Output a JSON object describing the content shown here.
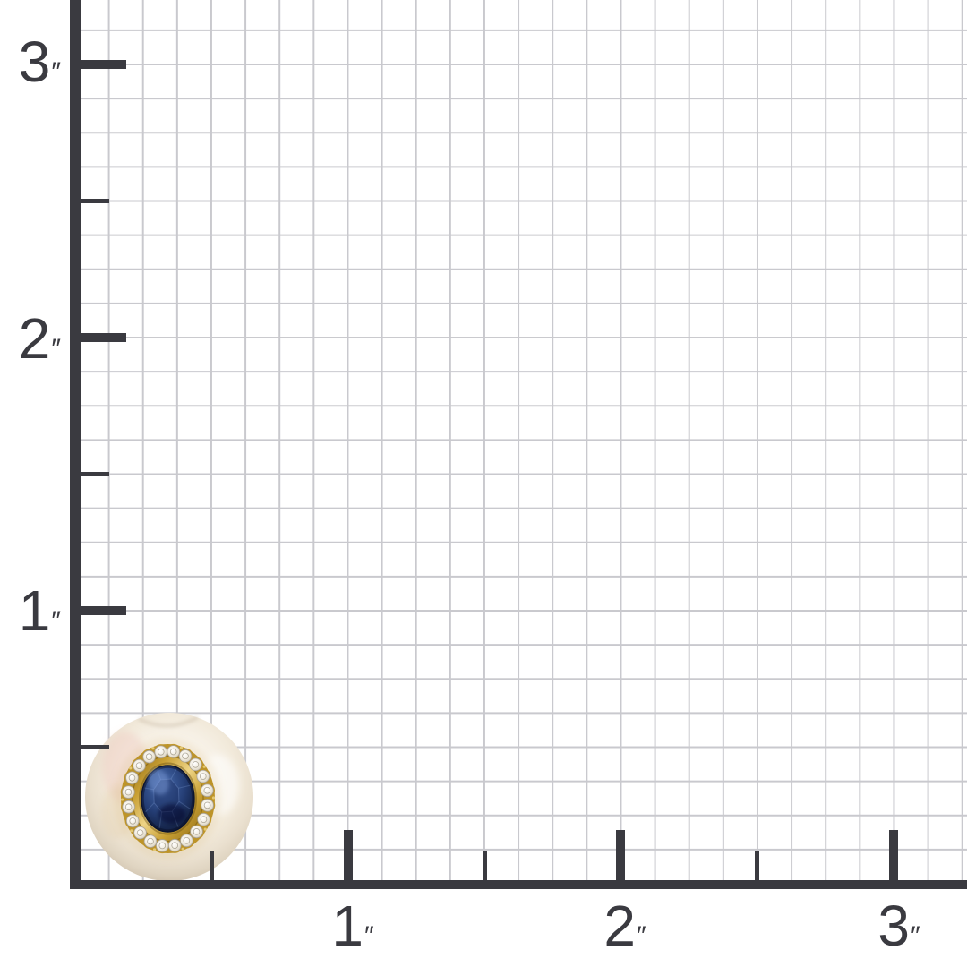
{
  "ruler": {
    "unit_mark": "″",
    "squares_per_inch": 8,
    "y_axis_labels": [
      {
        "num": "3"
      },
      {
        "num": "2"
      },
      {
        "num": "1"
      }
    ],
    "x_axis_labels": [
      {
        "num": "1"
      },
      {
        "num": "2"
      },
      {
        "num": "3"
      }
    ],
    "colors": {
      "axis": "#3a3a40",
      "grid": "#c9c9ce",
      "background": "#ffffff"
    }
  },
  "product": {
    "description": "Round white pearl stud earring set with an oval blue sapphire in a yellow-gold bezel surrounded by a halo of small round diamonds, shown at just over half an inch wide",
    "diamond_count": 20,
    "colors": {
      "pearl": "#f6f0e4",
      "pearl_edge": "#d8cbb8",
      "sapphire": "#24407c",
      "sapphire_dark": "#101c3d",
      "gold": "#c79d31",
      "gold_mid": "#bd9429",
      "gold_dark": "#8d6a16",
      "gold_light": "#eed486",
      "diamond": "#f1ece0"
    }
  }
}
